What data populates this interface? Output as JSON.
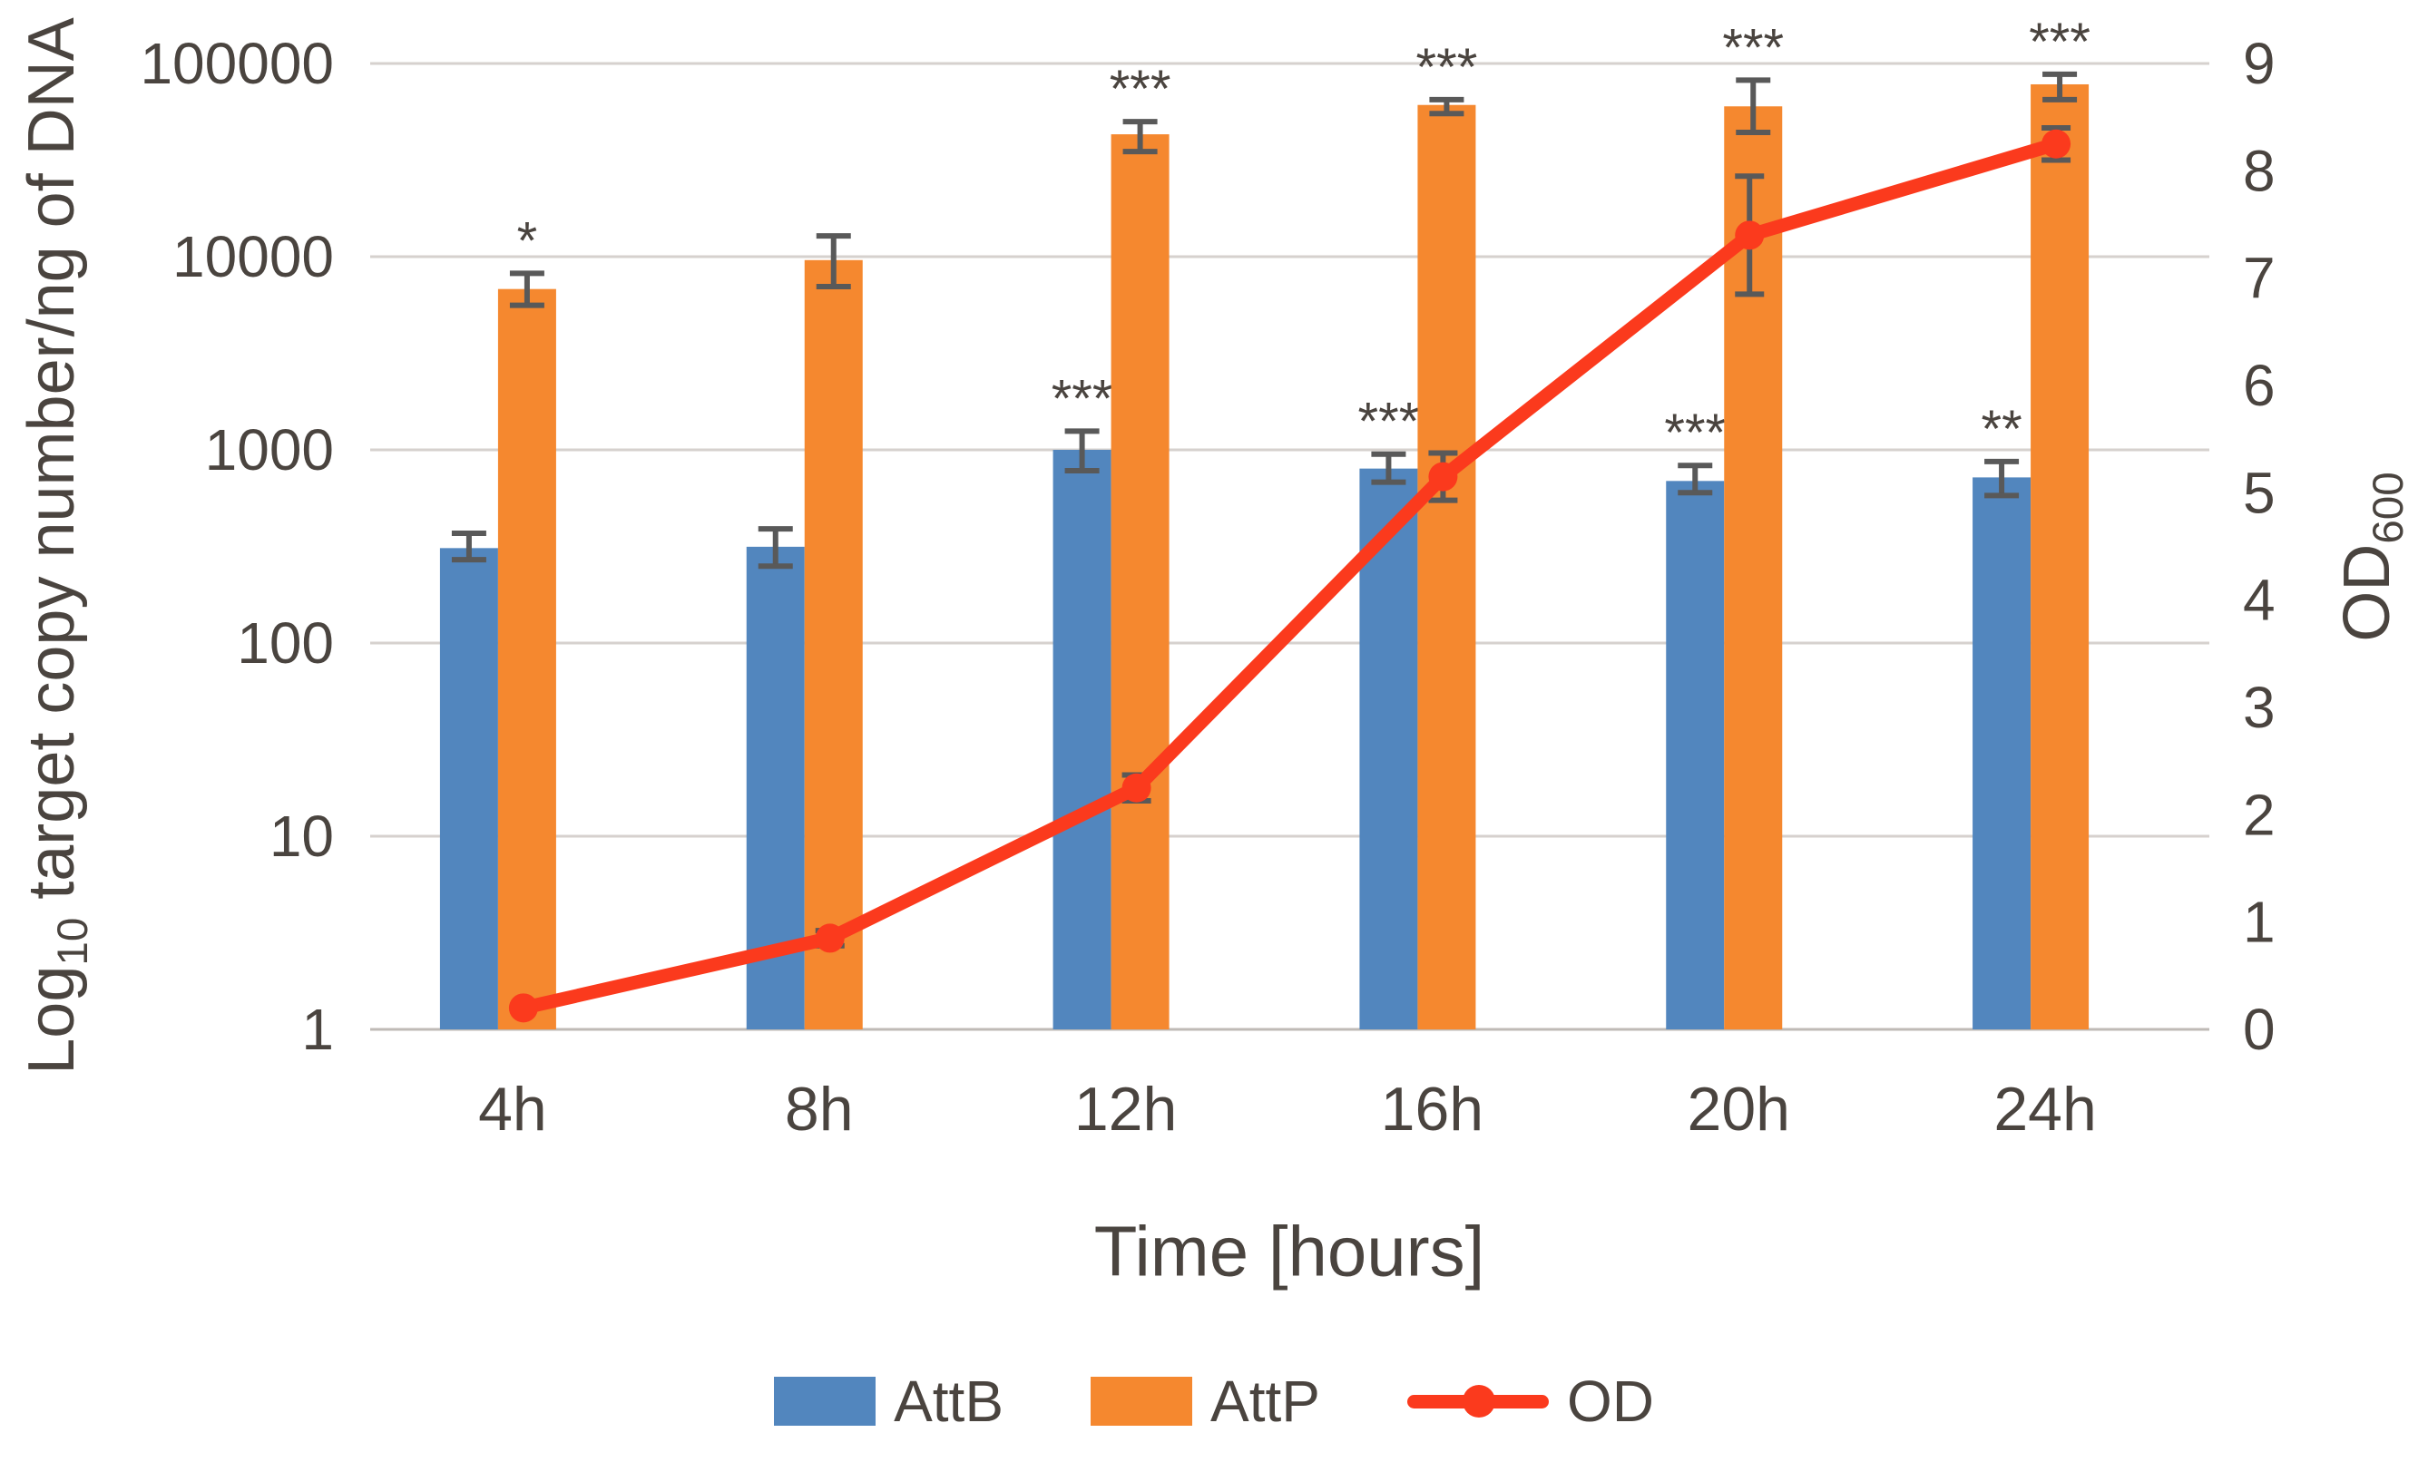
{
  "figure": {
    "x_axis_title": "Time [hours]",
    "left_axis_title": {
      "pre": "Log",
      "sub": "10",
      "post": " target copy number/ng of DNA"
    },
    "right_axis_title": {
      "pre": "OD",
      "sub": "600"
    }
  },
  "chart_data": {
    "type": "combo-bar-line",
    "categories": [
      "4h",
      "8h",
      "12h",
      "16h",
      "20h",
      "24h"
    ],
    "x_axis_label": "Time [hours]",
    "left_axis": {
      "label": "Log10 target copy number/ng of DNA",
      "scale": "log10",
      "ticks": [
        100000,
        10000,
        1000,
        100,
        10,
        1
      ],
      "range": [
        1,
        100000
      ]
    },
    "right_axis": {
      "label": "OD600",
      "ticks": [
        9,
        8,
        7,
        6,
        5,
        4,
        3,
        2,
        1,
        0
      ],
      "range": [
        0,
        9
      ]
    },
    "grid": true,
    "legend_position": "bottom",
    "colors": {
      "attb": "#5286BE",
      "attp": "#F5882F",
      "od": "#FB3A1D",
      "gridline": "#D6D1CE",
      "axis_line": "#BFBAB6",
      "error_bar": "#595959",
      "text": "#4A443F",
      "significance": "#1F1F1F"
    },
    "series": [
      {
        "name": "AttB",
        "type": "bar",
        "axis": "left",
        "values": [
          310,
          315,
          1000,
          800,
          690,
          720
        ],
        "err_low": [
          270,
          250,
          780,
          680,
          600,
          580
        ],
        "err_high": [
          370,
          390,
          1250,
          950,
          830,
          870
        ],
        "significance": [
          "",
          "",
          "***",
          "***",
          "***",
          "**"
        ]
      },
      {
        "name": "AttP",
        "type": "bar",
        "axis": "left",
        "values": [
          6800,
          9600,
          43000,
          61000,
          60000,
          78000
        ],
        "err_low": [
          5600,
          7000,
          35000,
          55000,
          44000,
          65000
        ],
        "err_high": [
          8200,
          12800,
          50000,
          65000,
          82000,
          88000
        ],
        "significance": [
          "*",
          "",
          "***",
          "***",
          "***",
          "***"
        ]
      },
      {
        "name": "OD",
        "type": "line",
        "axis": "right",
        "values": [
          0.2,
          0.85,
          2.25,
          5.15,
          7.4,
          8.25
        ],
        "err": [
          0.03,
          0.07,
          0.12,
          0.22,
          0.55,
          0.15
        ]
      }
    ]
  }
}
